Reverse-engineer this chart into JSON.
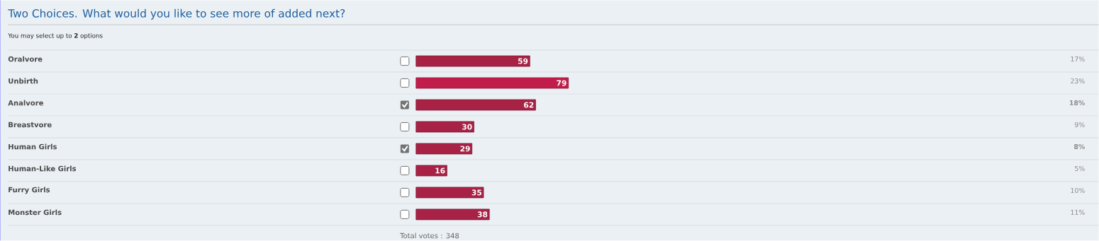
{
  "chart_data": {
    "type": "bar",
    "orientation": "horizontal",
    "title": "Two Choices. What would you like to see more of added next?",
    "subtitle": "You may select up to **2** options",
    "categories": [
      "Oralvore",
      "Unbirth",
      "Analvore",
      "Breastvore",
      "Human Girls",
      "Human-Like Girls",
      "Furry Girls",
      "Monster Girls"
    ],
    "values": [
      59,
      79,
      62,
      30,
      29,
      16,
      35,
      38
    ],
    "colors": [
      "#a82246",
      "#c21d4a",
      "#a82246",
      "#a82246",
      "#a82246",
      "#a82246",
      "#a82246",
      "#a82246"
    ],
    "data_labels": true,
    "annotations": [
      "17%",
      "23%",
      "**18%**",
      "9%",
      "**8%**",
      "5%",
      "10%",
      "11%",
      "Total votes : 348"
    ]
  }
}
